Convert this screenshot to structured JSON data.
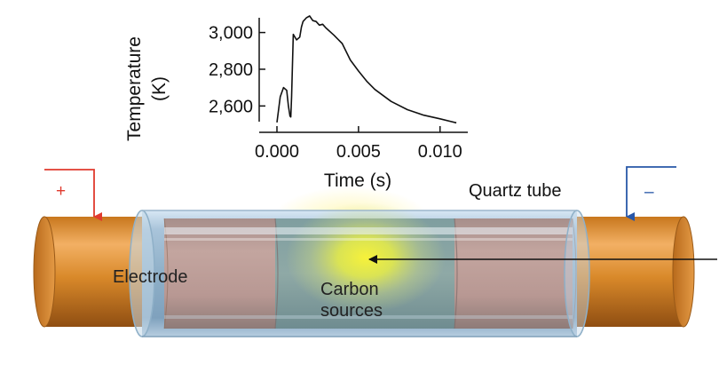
{
  "inset_chart": {
    "ylabel_line1": "Temperature",
    "ylabel_line2": "(K)",
    "xlabel": "Time (s)",
    "y_ticks": [
      "2,600",
      "2,800",
      "3,000"
    ],
    "x_ticks": [
      "0.000",
      "0.005",
      "0.010"
    ]
  },
  "chart_data": {
    "type": "line",
    "title": "",
    "xlabel": "Time (s)",
    "ylabel": "Temperature (K)",
    "xlim": [
      0.0,
      0.0117
    ],
    "ylim": [
      2500,
      3090
    ],
    "x_ticks": [
      0.0,
      0.005,
      0.01
    ],
    "y_ticks": [
      2600,
      2800,
      3000
    ],
    "grid": false,
    "series": [
      {
        "color": "#111111",
        "x": [
          0.0,
          0.0002,
          0.0004,
          0.0006,
          0.0007,
          0.0008,
          0.00085,
          0.0009,
          0.001,
          0.0012,
          0.0014,
          0.0015,
          0.0016,
          0.0018,
          0.002,
          0.0022,
          0.0024,
          0.0026,
          0.0028,
          0.003,
          0.0035,
          0.004,
          0.0045,
          0.005,
          0.0055,
          0.006,
          0.007,
          0.008,
          0.009,
          0.01,
          0.011
        ],
        "y": [
          2510,
          2650,
          2700,
          2685,
          2600,
          2545,
          2540,
          2650,
          2990,
          2960,
          2975,
          3030,
          3060,
          3080,
          3090,
          3065,
          3060,
          3040,
          3045,
          3025,
          2985,
          2940,
          2850,
          2790,
          2735,
          2690,
          2625,
          2580,
          2550,
          2530,
          2508
        ]
      }
    ]
  },
  "labels": {
    "plus": "+",
    "minus": "–",
    "quartz_tube": "Quartz tube",
    "electrode": "Electrode",
    "carbon_line1": "Carbon",
    "carbon_line2": "sources"
  },
  "colors": {
    "positive_wire": "#e03a2e",
    "negative_wire": "#2857a8",
    "electrode": "#d9892a",
    "glow": "#f2f030"
  }
}
